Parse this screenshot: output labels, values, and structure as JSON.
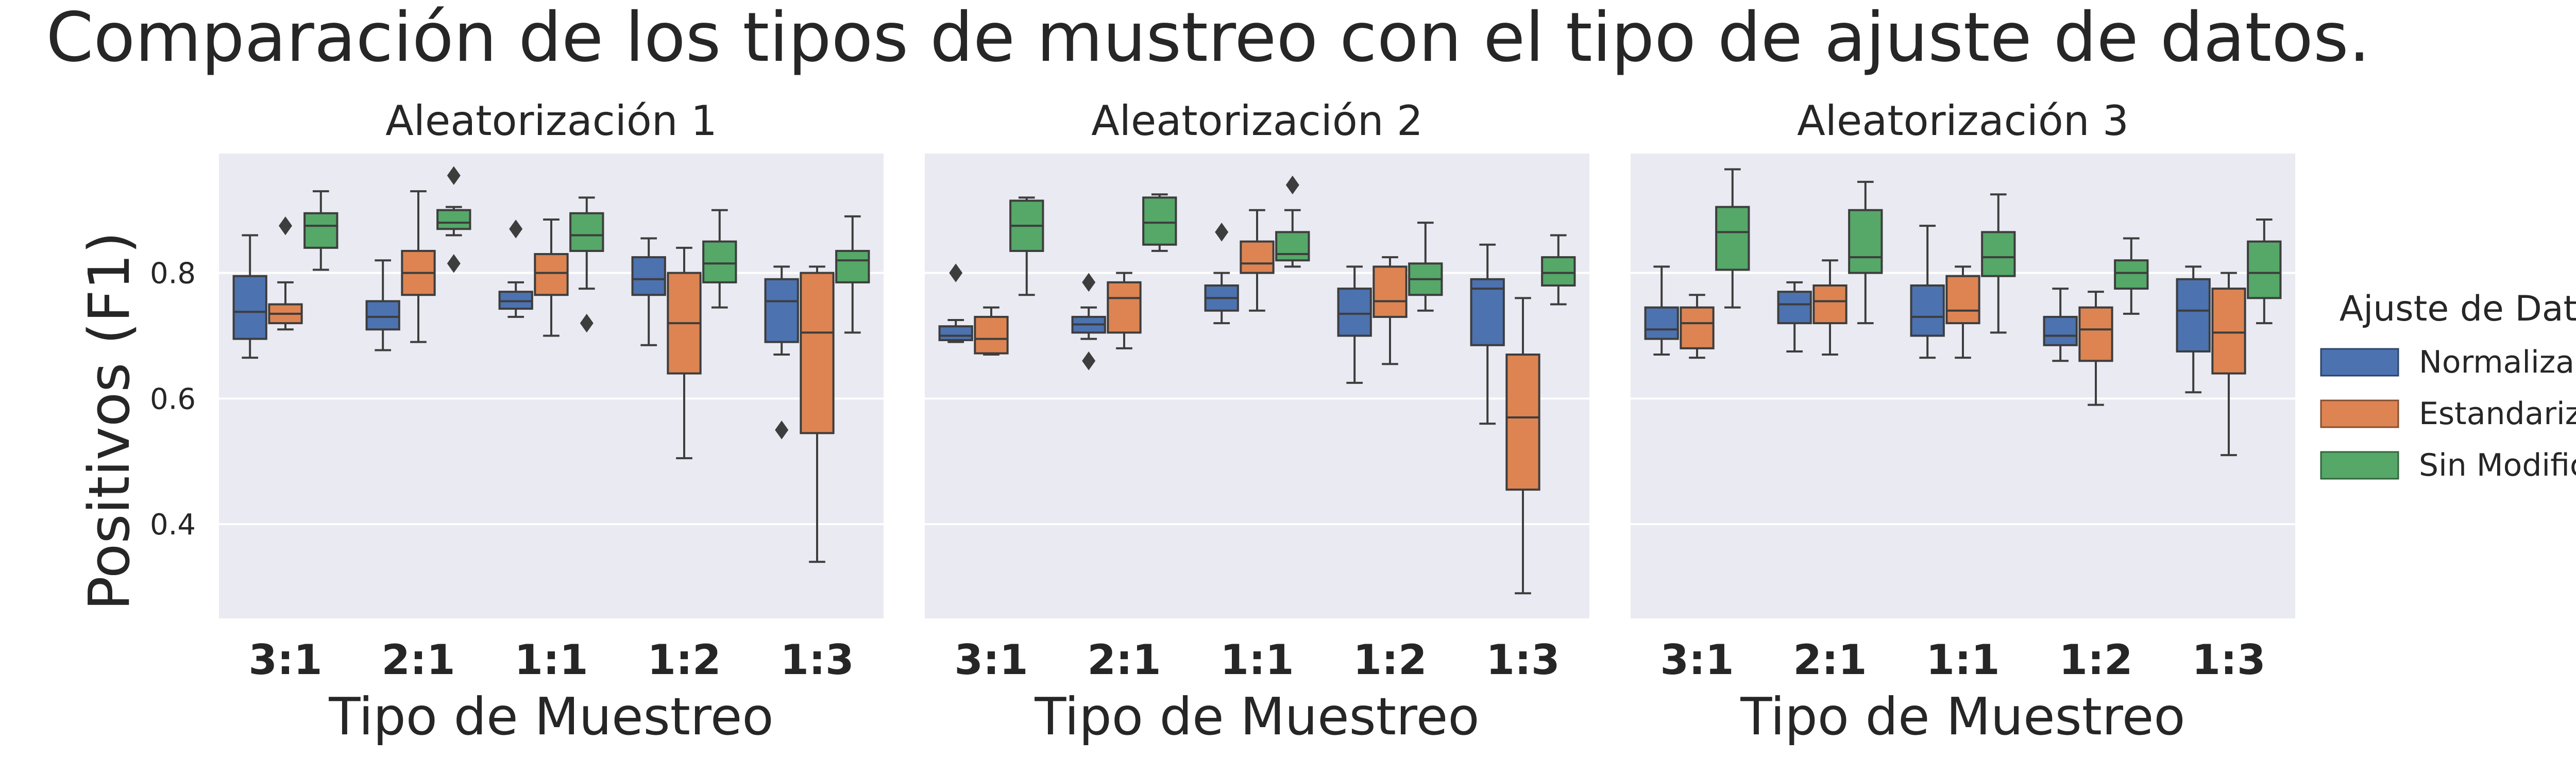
{
  "chart_data": {
    "type": "box",
    "title": "Comparación de los tipos de mustreo con el tipo de ajuste de datos.",
    "ylabel": "Positivos (F1)",
    "xlabel": "Tipo de Muestreo",
    "categories": [
      "3:1",
      "2:1",
      "1:1",
      "1:2",
      "1:3"
    ],
    "yticks": [
      0.4,
      0.6,
      0.8
    ],
    "ylim": [
      0.25,
      0.99
    ],
    "grid": true,
    "legend": {
      "title": "Ajuste de Datos",
      "position": "right",
      "entries": [
        {
          "name": "Normalizados",
          "color": "#4c72b0"
        },
        {
          "name": "Estandarizados",
          "color": "#dd8452"
        },
        {
          "name": "Sin Modificación",
          "color": "#55a868"
        }
      ]
    },
    "panels": [
      {
        "title": "Aleatorización 1",
        "series": [
          {
            "name": "Normalizados",
            "boxes": [
              {
                "whislo": 0.665,
                "q1": 0.695,
                "med": 0.738,
                "q3": 0.795,
                "whishi": 0.86,
                "fliers": []
              },
              {
                "whislo": 0.677,
                "q1": 0.71,
                "med": 0.73,
                "q3": 0.755,
                "whishi": 0.82,
                "fliers": []
              },
              {
                "whislo": 0.73,
                "q1": 0.743,
                "med": 0.755,
                "q3": 0.77,
                "whishi": 0.785,
                "fliers": [
                  0.87
                ]
              },
              {
                "whislo": 0.685,
                "q1": 0.765,
                "med": 0.79,
                "q3": 0.825,
                "whishi": 0.855,
                "fliers": []
              },
              {
                "whislo": 0.67,
                "q1": 0.69,
                "med": 0.755,
                "q3": 0.79,
                "whishi": 0.81,
                "fliers": [
                  0.55
                ]
              }
            ]
          },
          {
            "name": "Estandarizados",
            "boxes": [
              {
                "whislo": 0.71,
                "q1": 0.72,
                "med": 0.735,
                "q3": 0.75,
                "whishi": 0.785,
                "fliers": [
                  0.875
                ]
              },
              {
                "whislo": 0.69,
                "q1": 0.765,
                "med": 0.8,
                "q3": 0.835,
                "whishi": 0.93,
                "fliers": []
              },
              {
                "whislo": 0.7,
                "q1": 0.765,
                "med": 0.8,
                "q3": 0.83,
                "whishi": 0.885,
                "fliers": []
              },
              {
                "whislo": 0.505,
                "q1": 0.64,
                "med": 0.72,
                "q3": 0.8,
                "whishi": 0.84,
                "fliers": []
              },
              {
                "whislo": 0.34,
                "q1": 0.545,
                "med": 0.705,
                "q3": 0.8,
                "whishi": 0.81,
                "fliers": []
              }
            ]
          },
          {
            "name": "Sin Modificación",
            "boxes": [
              {
                "whislo": 0.805,
                "q1": 0.84,
                "med": 0.875,
                "q3": 0.895,
                "whishi": 0.93,
                "fliers": []
              },
              {
                "whislo": 0.86,
                "q1": 0.87,
                "med": 0.88,
                "q3": 0.9,
                "whishi": 0.905,
                "fliers": [
                  0.955,
                  0.815
                ]
              },
              {
                "whislo": 0.775,
                "q1": 0.835,
                "med": 0.86,
                "q3": 0.895,
                "whishi": 0.92,
                "fliers": [
                  0.72
                ]
              },
              {
                "whislo": 0.745,
                "q1": 0.785,
                "med": 0.815,
                "q3": 0.85,
                "whishi": 0.9,
                "fliers": []
              },
              {
                "whislo": 0.705,
                "q1": 0.785,
                "med": 0.82,
                "q3": 0.835,
                "whishi": 0.89,
                "fliers": []
              }
            ]
          }
        ]
      },
      {
        "title": "Aleatorización 2",
        "series": [
          {
            "name": "Normalizados",
            "boxes": [
              {
                "whislo": 0.69,
                "q1": 0.693,
                "med": 0.7,
                "q3": 0.715,
                "whishi": 0.725,
                "fliers": [
                  0.8
                ]
              },
              {
                "whislo": 0.695,
                "q1": 0.705,
                "med": 0.718,
                "q3": 0.73,
                "whishi": 0.745,
                "fliers": [
                  0.785,
                  0.66
                ]
              },
              {
                "whislo": 0.72,
                "q1": 0.74,
                "med": 0.76,
                "q3": 0.78,
                "whishi": 0.8,
                "fliers": [
                  0.865
                ]
              },
              {
                "whislo": 0.625,
                "q1": 0.7,
                "med": 0.735,
                "q3": 0.775,
                "whishi": 0.81,
                "fliers": []
              },
              {
                "whislo": 0.56,
                "q1": 0.685,
                "med": 0.775,
                "q3": 0.79,
                "whishi": 0.845,
                "fliers": []
              }
            ]
          },
          {
            "name": "Estandarizados",
            "boxes": [
              {
                "whislo": 0.67,
                "q1": 0.672,
                "med": 0.695,
                "q3": 0.73,
                "whishi": 0.745,
                "fliers": []
              },
              {
                "whislo": 0.68,
                "q1": 0.705,
                "med": 0.76,
                "q3": 0.785,
                "whishi": 0.8,
                "fliers": []
              },
              {
                "whislo": 0.74,
                "q1": 0.8,
                "med": 0.815,
                "q3": 0.85,
                "whishi": 0.9,
                "fliers": []
              },
              {
                "whislo": 0.655,
                "q1": 0.73,
                "med": 0.755,
                "q3": 0.81,
                "whishi": 0.825,
                "fliers": []
              },
              {
                "whislo": 0.29,
                "q1": 0.455,
                "med": 0.57,
                "q3": 0.67,
                "whishi": 0.76,
                "fliers": []
              }
            ]
          },
          {
            "name": "Sin Modificación",
            "boxes": [
              {
                "whislo": 0.765,
                "q1": 0.835,
                "med": 0.875,
                "q3": 0.915,
                "whishi": 0.92,
                "fliers": []
              },
              {
                "whislo": 0.835,
                "q1": 0.845,
                "med": 0.88,
                "q3": 0.92,
                "whishi": 0.925,
                "fliers": []
              },
              {
                "whislo": 0.81,
                "q1": 0.82,
                "med": 0.83,
                "q3": 0.865,
                "whishi": 0.9,
                "fliers": [
                  0.94
                ]
              },
              {
                "whislo": 0.74,
                "q1": 0.765,
                "med": 0.79,
                "q3": 0.815,
                "whishi": 0.88,
                "fliers": []
              },
              {
                "whislo": 0.75,
                "q1": 0.78,
                "med": 0.8,
                "q3": 0.825,
                "whishi": 0.86,
                "fliers": []
              }
            ]
          }
        ]
      },
      {
        "title": "Aleatorización 3",
        "series": [
          {
            "name": "Normalizados",
            "boxes": [
              {
                "whislo": 0.67,
                "q1": 0.695,
                "med": 0.71,
                "q3": 0.745,
                "whishi": 0.81,
                "fliers": []
              },
              {
                "whislo": 0.675,
                "q1": 0.72,
                "med": 0.75,
                "q3": 0.77,
                "whishi": 0.785,
                "fliers": []
              },
              {
                "whislo": 0.665,
                "q1": 0.7,
                "med": 0.73,
                "q3": 0.78,
                "whishi": 0.875,
                "fliers": []
              },
              {
                "whislo": 0.66,
                "q1": 0.685,
                "med": 0.7,
                "q3": 0.73,
                "whishi": 0.775,
                "fliers": []
              },
              {
                "whislo": 0.61,
                "q1": 0.675,
                "med": 0.74,
                "q3": 0.79,
                "whishi": 0.81,
                "fliers": []
              }
            ]
          },
          {
            "name": "Estandarizados",
            "boxes": [
              {
                "whislo": 0.665,
                "q1": 0.68,
                "med": 0.72,
                "q3": 0.745,
                "whishi": 0.765,
                "fliers": []
              },
              {
                "whislo": 0.67,
                "q1": 0.72,
                "med": 0.755,
                "q3": 0.78,
                "whishi": 0.82,
                "fliers": []
              },
              {
                "whislo": 0.665,
                "q1": 0.72,
                "med": 0.74,
                "q3": 0.795,
                "whishi": 0.81,
                "fliers": []
              },
              {
                "whislo": 0.59,
                "q1": 0.66,
                "med": 0.71,
                "q3": 0.745,
                "whishi": 0.77,
                "fliers": []
              },
              {
                "whislo": 0.51,
                "q1": 0.64,
                "med": 0.705,
                "q3": 0.775,
                "whishi": 0.8,
                "fliers": []
              }
            ]
          },
          {
            "name": "Sin Modificación",
            "boxes": [
              {
                "whislo": 0.745,
                "q1": 0.805,
                "med": 0.865,
                "q3": 0.905,
                "whishi": 0.965,
                "fliers": []
              },
              {
                "whislo": 0.72,
                "q1": 0.8,
                "med": 0.825,
                "q3": 0.9,
                "whishi": 0.945,
                "fliers": []
              },
              {
                "whislo": 0.705,
                "q1": 0.795,
                "med": 0.825,
                "q3": 0.865,
                "whishi": 0.925,
                "fliers": []
              },
              {
                "whislo": 0.735,
                "q1": 0.775,
                "med": 0.8,
                "q3": 0.82,
                "whishi": 0.855,
                "fliers": []
              },
              {
                "whislo": 0.72,
                "q1": 0.76,
                "med": 0.8,
                "q3": 0.85,
                "whishi": 0.885,
                "fliers": []
              }
            ]
          }
        ]
      }
    ]
  }
}
